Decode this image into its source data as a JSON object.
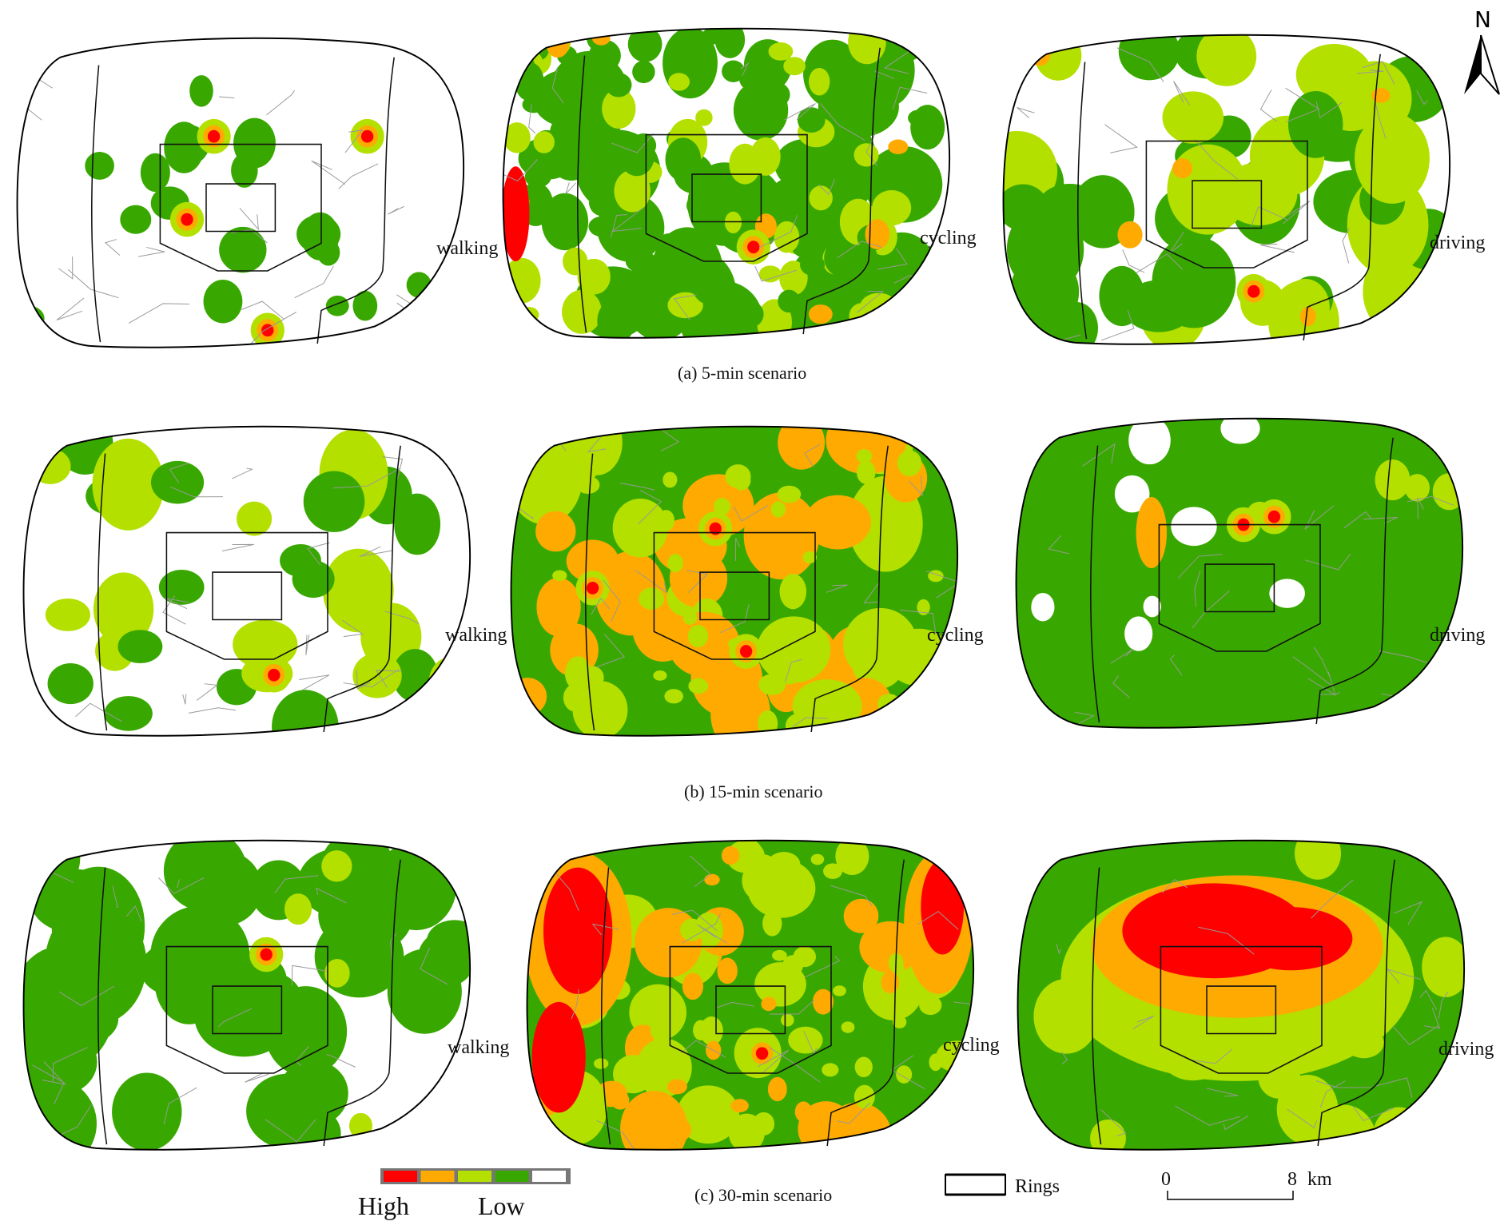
{
  "figure": {
    "rows": [
      {
        "caption": "(a) 5-min scenario",
        "panels": [
          {
            "mode": "walking"
          },
          {
            "mode": "cycling"
          },
          {
            "mode": "driving"
          }
        ]
      },
      {
        "caption": "(b) 15-min scenario",
        "panels": [
          {
            "mode": "walking"
          },
          {
            "mode": "cycling"
          },
          {
            "mode": "driving"
          }
        ]
      },
      {
        "caption": "(c) 30-min scenario",
        "panels": [
          {
            "mode": "walking"
          },
          {
            "mode": "cycling"
          },
          {
            "mode": "driving"
          }
        ]
      }
    ]
  },
  "legend": {
    "classes": [
      "#ff0000",
      "#ffaa00",
      "#b4e000",
      "#38a800",
      "#ffffff"
    ],
    "high_label": "High",
    "low_label": "Low",
    "rings_label": "Rings"
  },
  "scale_bar": {
    "start": "0",
    "end": "8",
    "unit": "km"
  },
  "north_arrow": {
    "label": "N"
  }
}
